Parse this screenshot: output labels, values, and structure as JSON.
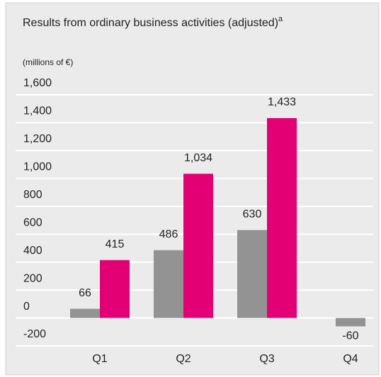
{
  "chart_data": {
    "type": "bar",
    "title": "Results from ordinary business activities (adjusted)",
    "title_superscript": "a",
    "subtitle": "(millions of €)",
    "categories": [
      "Q1",
      "Q2",
      "Q3",
      "Q4"
    ],
    "series": [
      {
        "color": "#939393",
        "values": [
          66,
          486,
          630,
          -60
        ],
        "value_labels": [
          "66",
          "486",
          "630",
          "-60"
        ]
      },
      {
        "color": "#e20074",
        "values": [
          415,
          1034,
          1433,
          null
        ],
        "value_labels": [
          "415",
          "1,034",
          "1,433",
          null
        ]
      }
    ],
    "ylim": [
      -200,
      1600
    ],
    "yticks": [
      {
        "value": 1600,
        "label": "1,600"
      },
      {
        "value": 1400,
        "label": "1,400"
      },
      {
        "value": 1200,
        "label": "1,200"
      },
      {
        "value": 1000,
        "label": "1,000"
      },
      800,
      600,
      400,
      200,
      0,
      -200
    ],
    "grid": true
  }
}
